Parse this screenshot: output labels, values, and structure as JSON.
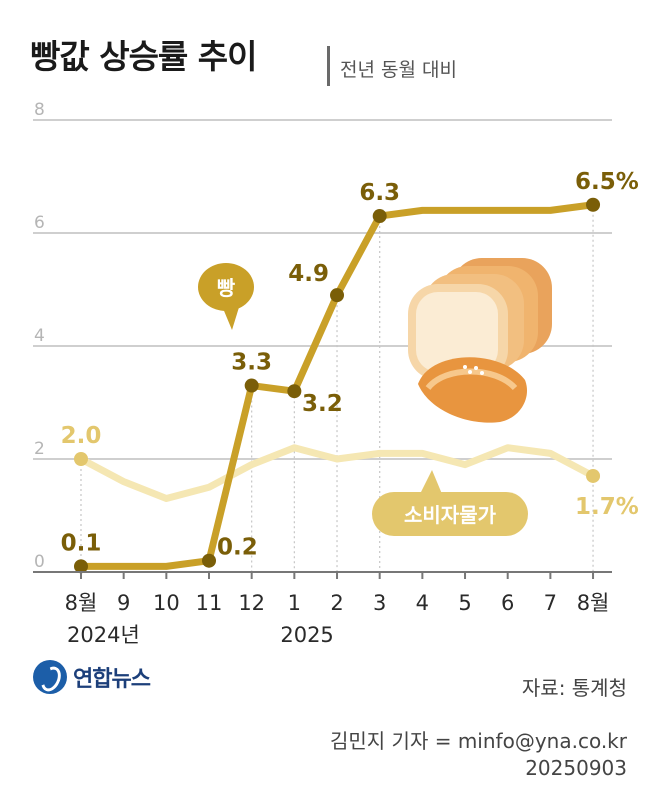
{
  "title": "빵값 상승률 추이",
  "subtitle": "전년 동월 대비",
  "chart_data": {
    "type": "line",
    "x": [
      "8월",
      "9",
      "10",
      "11",
      "12",
      "1",
      "2",
      "3",
      "4",
      "5",
      "6",
      "7",
      "8월"
    ],
    "year_labels": [
      {
        "text": "2024년",
        "at": 0
      },
      {
        "text": "2025",
        "at": 5
      }
    ],
    "ylim": [
      0,
      8
    ],
    "yticks": [
      "0",
      "2",
      "4",
      "6",
      "8"
    ],
    "series": [
      {
        "name": "빵",
        "color": "#c9a028",
        "values": [
          0.1,
          0.1,
          0.1,
          0.2,
          3.3,
          3.2,
          4.9,
          6.3,
          6.4,
          6.4,
          6.4,
          6.4,
          6.5
        ]
      },
      {
        "name": "소비자물가",
        "color": "#f5e7b3",
        "values": [
          2.0,
          1.6,
          1.3,
          1.5,
          1.9,
          2.2,
          2.0,
          2.1,
          2.1,
          1.9,
          2.2,
          2.1,
          1.7
        ]
      }
    ],
    "labels": [
      {
        "series": 0,
        "index": 0,
        "text": "0.1"
      },
      {
        "series": 0,
        "index": 3,
        "text": "0.2"
      },
      {
        "series": 0,
        "index": 4,
        "text": "3.3"
      },
      {
        "series": 0,
        "index": 5,
        "text": "3.2"
      },
      {
        "series": 0,
        "index": 6,
        "text": "4.9"
      },
      {
        "series": 0,
        "index": 7,
        "text": "6.3"
      },
      {
        "series": 0,
        "index": 12,
        "text": "6.5%"
      },
      {
        "series": 1,
        "index": 0,
        "text": "2.0"
      },
      {
        "series": 1,
        "index": 12,
        "text": "1.7%"
      }
    ],
    "colors": {
      "bread": "#c9a028",
      "bread_dark": "#7a5e08",
      "cpi": "#f5e7b3",
      "cpi_label": "#e3c76d",
      "grid": "#cfcfcf"
    }
  },
  "source": "자료: 통계청",
  "logo": "연합뉴스",
  "credit": "김민지 기자 = minfo@yna.co.kr",
  "date": "20250903"
}
